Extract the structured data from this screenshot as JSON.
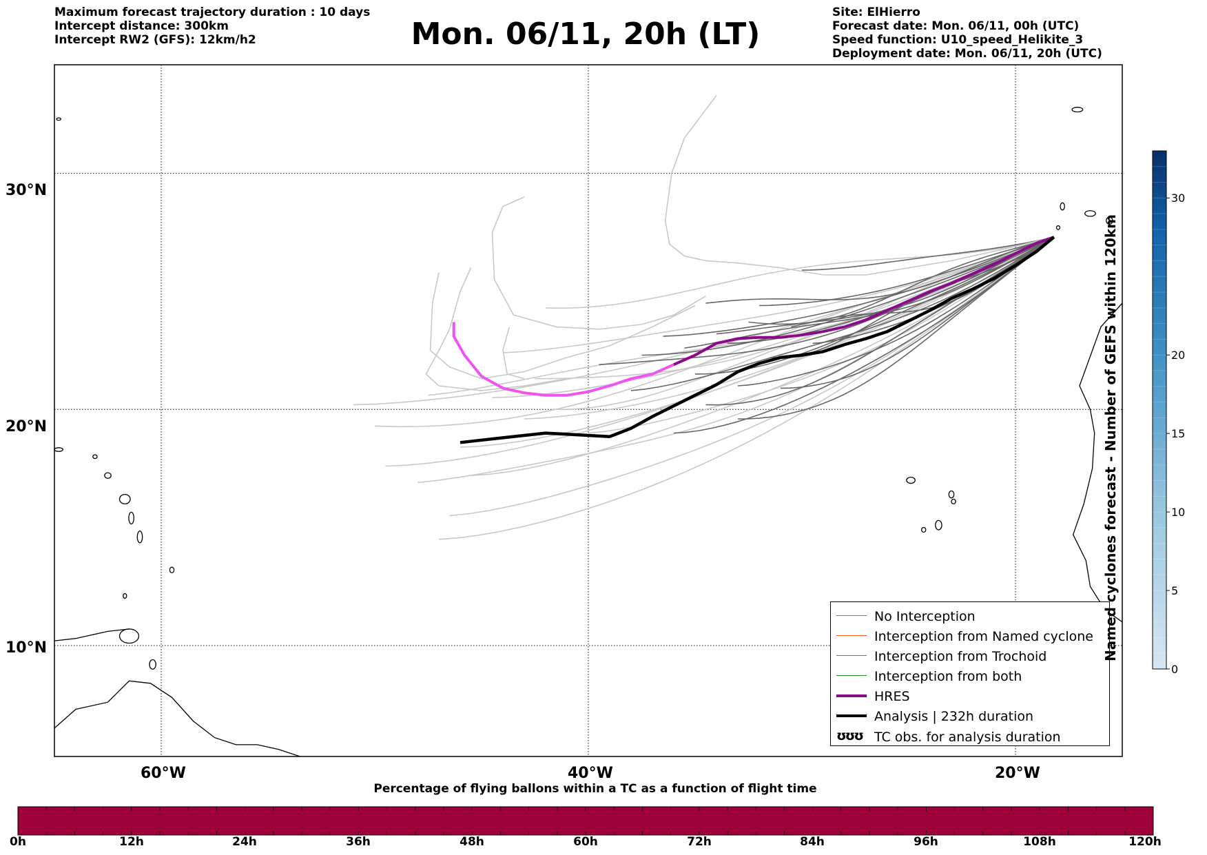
{
  "header": {
    "left_lines": [
      "Maximum forecast trajectory duration : 10 days",
      "Intercept distance: 300km",
      "Intercept RW2 (GFS):  12km/h2"
    ],
    "title": "Mon. 06/11, 20h (LT)",
    "right_lines": [
      "Site: ElHierro",
      "Forecast date: Mon. 06/11, 00h (UTC)",
      "Speed function: U10_speed_Helikite_3",
      "Deployment date: Mon. 06/11, 20h (UTC)"
    ]
  },
  "map": {
    "lon_range": [
      -65,
      -15
    ],
    "lat_range": [
      5.3,
      34.6
    ],
    "lon_ticks": [
      -60,
      -40,
      -20
    ],
    "lat_ticks": [
      10,
      20,
      30
    ],
    "lon_labels": [
      "60°W",
      "40°W",
      "20°W"
    ],
    "lat_labels": [
      "10°N",
      "20°N",
      "30°N"
    ],
    "grid": "dotted",
    "colors": {
      "no_interception": "#666666",
      "far_members": "#c8c8c8",
      "hres": "#8b0a8b",
      "hres_early": "#ee55ee",
      "analysis": "#000000",
      "coast": "#000000"
    },
    "analysis_track": [
      [
        -46,
        18.6
      ],
      [
        -45,
        18.7
      ],
      [
        -44,
        18.8
      ],
      [
        -43,
        18.9
      ],
      [
        -42,
        19.0
      ],
      [
        -41,
        18.95
      ],
      [
        -40,
        18.9
      ],
      [
        -39,
        18.85
      ],
      [
        -38,
        19.2
      ],
      [
        -37,
        19.7
      ],
      [
        -36,
        20.15
      ],
      [
        -35,
        20.6
      ],
      [
        -34,
        21.05
      ],
      [
        -33,
        21.6
      ],
      [
        -32,
        21.95
      ],
      [
        -31,
        22.2
      ],
      [
        -30,
        22.3
      ],
      [
        -29,
        22.45
      ],
      [
        -28,
        22.75
      ],
      [
        -27,
        23.0
      ],
      [
        -26,
        23.3
      ],
      [
        -25,
        23.75
      ],
      [
        -24,
        24.2
      ],
      [
        -23,
        24.7
      ],
      [
        -22,
        25.1
      ],
      [
        -21,
        25.55
      ],
      [
        -20,
        26.1
      ],
      [
        -19,
        26.7
      ],
      [
        -18.2,
        27.3
      ]
    ],
    "hres_track": [
      [
        -46.3,
        23.7
      ],
      [
        -46.3,
        23.1
      ],
      [
        -45.8,
        22.3
      ],
      [
        -45,
        21.4
      ],
      [
        -44,
        20.9
      ],
      [
        -43,
        20.7
      ],
      [
        -42,
        20.6
      ],
      [
        -41,
        20.6
      ],
      [
        -40,
        20.75
      ],
      [
        -39,
        21.0
      ],
      [
        -38,
        21.3
      ],
      [
        -37,
        21.5
      ],
      [
        -36,
        21.9
      ],
      [
        -35,
        22.3
      ],
      [
        -34,
        22.8
      ],
      [
        -33,
        23.0
      ],
      [
        -32,
        23.05
      ],
      [
        -31,
        23.05
      ],
      [
        -30,
        23.15
      ],
      [
        -29,
        23.3
      ],
      [
        -28,
        23.5
      ],
      [
        -27,
        23.8
      ],
      [
        -26,
        24.2
      ],
      [
        -25,
        24.6
      ],
      [
        -24,
        25.0
      ],
      [
        -23,
        25.35
      ],
      [
        -22,
        25.75
      ],
      [
        -21,
        26.15
      ],
      [
        -20,
        26.6
      ],
      [
        -19,
        27.05
      ],
      [
        -18.2,
        27.3
      ]
    ],
    "hres_early_end_lon": -36
  },
  "legend": {
    "items": [
      {
        "label": "No Interception",
        "color": "#808080",
        "width": 1.5
      },
      {
        "label": "Interception from Named cyclone",
        "color": "#ff5a1e",
        "width": 1.5
      },
      {
        "label": "Interception from Trochoid",
        "color": "#808020",
        "width": 1.5
      },
      {
        "label": "Interception from both",
        "color": "#1e8c1e",
        "width": 1.5
      },
      {
        "label": "HRES",
        "color": "#8b0a8b",
        "width": 4
      },
      {
        "label": "Analysis | 232h duration",
        "color": "#000000",
        "width": 4
      }
    ],
    "tc_label": "TC obs. for analysis duration",
    "tc_symbol": "ʊʊʊ"
  },
  "right_colorbar": {
    "title": "Named cyclones forecast - Number of GEFS within 120km",
    "range": [
      0,
      33
    ],
    "ticks": [
      0,
      5,
      10,
      15,
      20,
      30
    ],
    "color_low": "#d6e6f4",
    "color_high": "#08306b"
  },
  "bottom_colorbar": {
    "title": "Percentage of flying ballons within a TC as a function of flight time",
    "ticks": [
      "0h",
      "12h",
      "24h",
      "36h",
      "48h",
      "60h",
      "72h",
      "84h",
      "96h",
      "108h",
      "120h"
    ],
    "color": "#9e003a"
  }
}
